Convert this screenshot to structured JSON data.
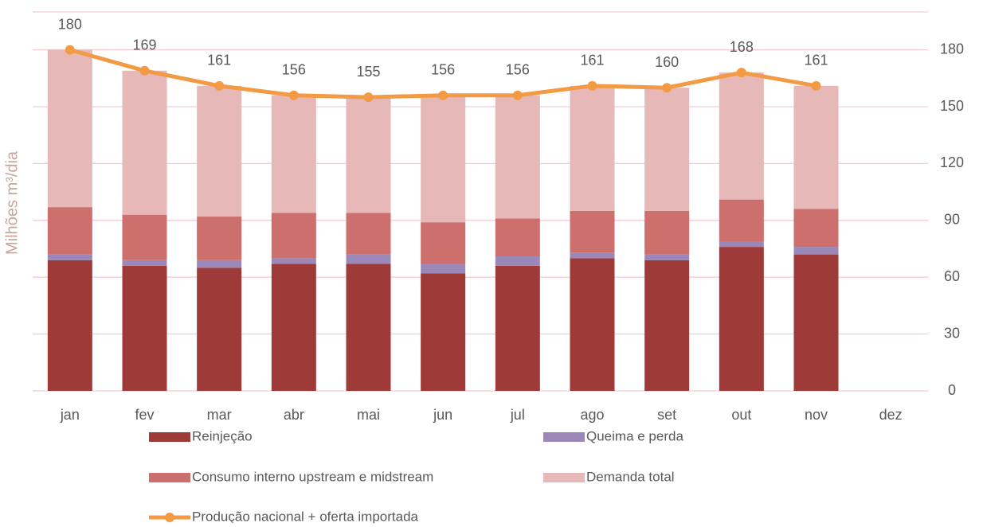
{
  "chart_data": {
    "type": "bar",
    "stacked": true,
    "y_label": "Milhões m³/dia",
    "categories": [
      "jan",
      "fev",
      "mar",
      "abr",
      "mai",
      "jun",
      "jul",
      "ago",
      "set",
      "out",
      "nov",
      "dez"
    ],
    "series": [
      {
        "name": "Reinjeção",
        "type": "bar",
        "color": "#9e3a38",
        "values": [
          69,
          66,
          65,
          67,
          67,
          62,
          66,
          70,
          69,
          76,
          72,
          null
        ]
      },
      {
        "name": "Queima e perda",
        "type": "bar",
        "color": "#9b88b8",
        "values": [
          3,
          3,
          4,
          3,
          5,
          5,
          5,
          3,
          3,
          3,
          4,
          null
        ]
      },
      {
        "name": "Consumo interno upstream e midstream",
        "type": "bar",
        "color": "#cc6f6d",
        "values": [
          25,
          24,
          23,
          24,
          22,
          22,
          20,
          22,
          23,
          22,
          20,
          null
        ]
      },
      {
        "name": "Demanda total",
        "type": "bar",
        "color": "#e6b8b7",
        "values": [
          83,
          76,
          69,
          62,
          61,
          67,
          65,
          66,
          65,
          67,
          65,
          null
        ]
      },
      {
        "name": "Produção nacional + oferta importada",
        "type": "line",
        "color": "#f39a45",
        "values": [
          180,
          169,
          161,
          156,
          155,
          156,
          156,
          161,
          160,
          168,
          161,
          null
        ]
      }
    ],
    "ylim": [
      0,
      200
    ],
    "yticks": [
      0,
      30,
      60,
      90,
      120,
      150,
      180
    ],
    "ytick_side": "right",
    "grid": true
  }
}
